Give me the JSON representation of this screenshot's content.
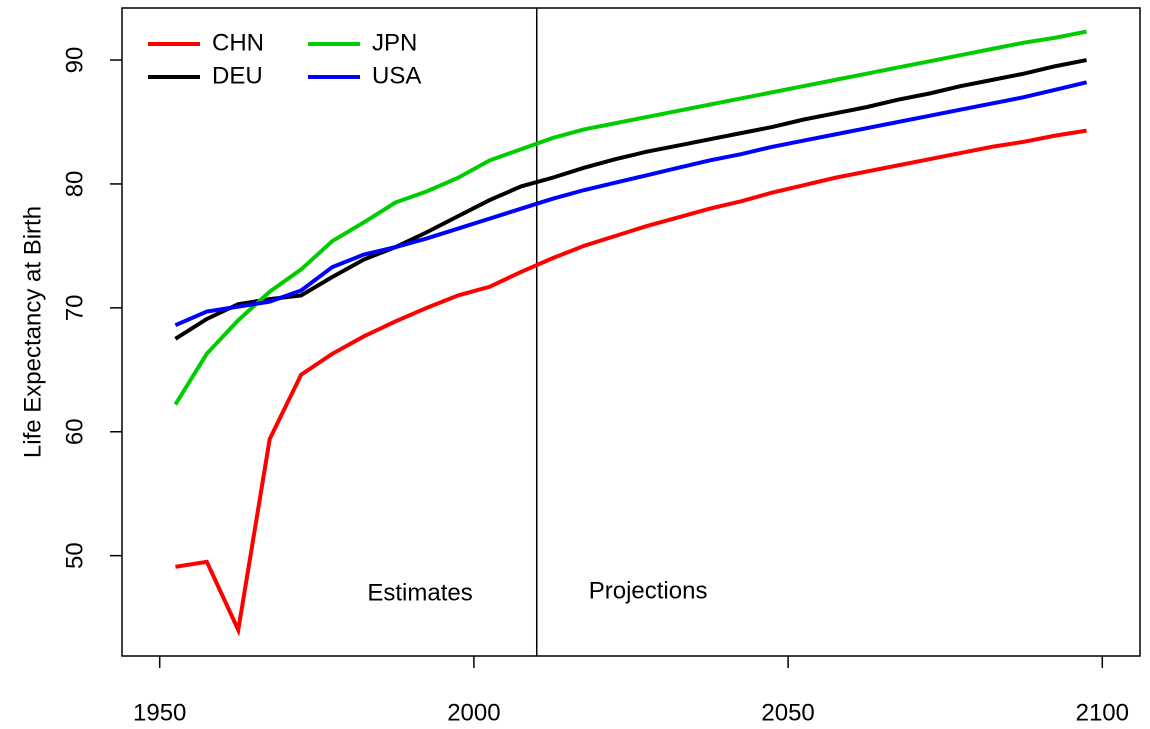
{
  "chart_data": {
    "type": "line",
    "y_label": "Life Expectancy at Birth",
    "x": [
      1952.5,
      1957.5,
      1962.5,
      1967.5,
      1972.5,
      1977.5,
      1982.5,
      1987.5,
      1992.5,
      1997.5,
      2002.5,
      2007.5,
      2012.5,
      2017.5,
      2022.5,
      2027.5,
      2032.5,
      2037.5,
      2042.5,
      2047.5,
      2052.5,
      2057.5,
      2062.5,
      2067.5,
      2072.5,
      2077.5,
      2082.5,
      2087.5,
      2092.5,
      2097.5
    ],
    "series": [
      {
        "name": "CHN",
        "color": "#ff0000",
        "values": [
          49.1,
          49.5,
          44.0,
          59.4,
          64.6,
          66.3,
          67.7,
          68.9,
          70.0,
          71.0,
          71.7,
          72.9,
          74.0,
          75.0,
          75.8,
          76.6,
          77.3,
          78.0,
          78.6,
          79.3,
          79.9,
          80.5,
          81.0,
          81.5,
          82.0,
          82.5,
          83.0,
          83.4,
          83.9,
          84.3
        ]
      },
      {
        "name": "DEU",
        "color": "#000000",
        "values": [
          67.5,
          69.1,
          70.3,
          70.7,
          71.0,
          72.5,
          73.9,
          74.9,
          76.1,
          77.4,
          78.7,
          79.8,
          80.5,
          81.3,
          82.0,
          82.6,
          83.1,
          83.6,
          84.1,
          84.6,
          85.2,
          85.7,
          86.2,
          86.8,
          87.3,
          87.9,
          88.4,
          88.9,
          89.5,
          90.0
        ]
      },
      {
        "name": "JPN",
        "color": "#00cd00",
        "values": [
          62.2,
          66.3,
          69.0,
          71.3,
          73.1,
          75.4,
          76.9,
          78.5,
          79.4,
          80.5,
          81.9,
          82.8,
          83.7,
          84.4,
          84.9,
          85.4,
          85.9,
          86.4,
          86.9,
          87.4,
          87.9,
          88.4,
          88.9,
          89.4,
          89.9,
          90.4,
          90.9,
          91.4,
          91.8,
          92.3
        ]
      },
      {
        "name": "USA",
        "color": "#0000ff",
        "values": [
          68.6,
          69.7,
          70.1,
          70.5,
          71.4,
          73.3,
          74.3,
          74.9,
          75.6,
          76.4,
          77.2,
          78.0,
          78.8,
          79.5,
          80.1,
          80.7,
          81.3,
          81.9,
          82.4,
          83.0,
          83.5,
          84.0,
          84.5,
          85.0,
          85.5,
          86.0,
          86.5,
          87.0,
          87.6,
          88.2
        ]
      }
    ],
    "xlim": [
      1944,
      2106
    ],
    "xticks": [
      1950,
      2000,
      2050,
      2100
    ],
    "ylim": [
      41.9,
      94.2
    ],
    "yticks": [
      50,
      60,
      70,
      80,
      90
    ],
    "vline": 2010,
    "annotations": [
      "Estimates",
      "Projections"
    ],
    "legend": "top-left"
  }
}
